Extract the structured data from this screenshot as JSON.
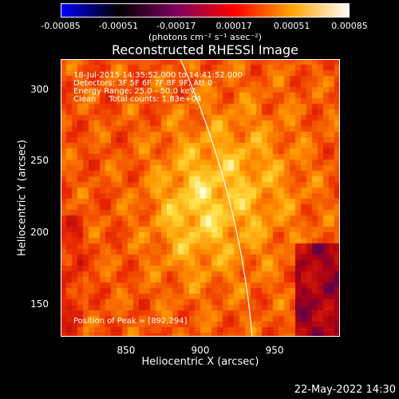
{
  "colorbar": {
    "ticks": [
      "-0.00085",
      "-0.00051",
      "-0.00017",
      "0.00017",
      "0.00051",
      "0.00085"
    ],
    "unit": "(photons cm⁻² s⁻¹ asec⁻²)",
    "colors": [
      "#0000ff",
      "#000000",
      "#7f0060",
      "#ff0000",
      "#ffa500",
      "#ffffff"
    ]
  },
  "chart_data": {
    "type": "heatmap",
    "title": "Reconstructed RHESSI Image",
    "xlabel": "Heliocentric X (arcsec)",
    "ylabel": "Heliocentric Y (arcsec)",
    "xlim": [
      806,
      994
    ],
    "ylim": [
      127,
      321
    ],
    "x_ticks": [
      850,
      900,
      950
    ],
    "y_ticks": [
      150,
      200,
      250,
      300
    ],
    "peak": [
      892,
      294
    ],
    "info_lines": [
      "18-Jul-2015 14:35:52.000 to 14:41:52.000",
      "Detectors: 3F 5F 6F 7F 8F 9F, Att 0",
      "Energy Range: 25.0 - 50.0 keV",
      "Clean     Total counts: 1.83e+04"
    ],
    "peak_label": "Position of Peak = [892,294]"
  },
  "footer": {
    "date": "22-May-2022 14:30"
  }
}
